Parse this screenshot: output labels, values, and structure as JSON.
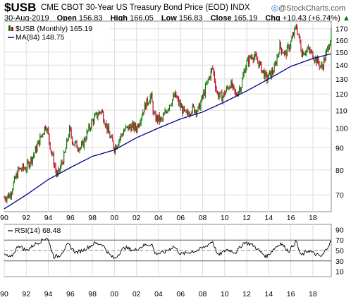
{
  "header": {
    "symbol": "$USB",
    "description": "CME CBOT 30-Year US Treasury Bond Price (EOD)  INDX",
    "brand": "@StockCharts.com",
    "date": "30-Aug-2019",
    "open_label": "Open",
    "open": "156.83",
    "high_label": "High",
    "high": "166.05",
    "low_label": "Low",
    "low": "156.83",
    "close_label": "Close",
    "close": "165.19",
    "chg_label": "Chg",
    "chg": "+10.43 (+6.74%)",
    "chg_arrow": "▲"
  },
  "chart_data": [
    {
      "type": "candlestick",
      "title": "$USB CME CBOT 30-Year US Treasury Bond Price (EOD) INDX",
      "period": "Monthly",
      "x_range": [
        1990,
        2019.67
      ],
      "ylim": [
        64,
        177
      ],
      "y_scale": "log",
      "y_ticks": [
        70,
        80,
        90,
        100,
        110,
        120,
        130,
        140,
        150,
        160,
        170
      ],
      "x_tick_labels": [
        "90",
        "92",
        "94",
        "96",
        "98",
        "00",
        "02",
        "04",
        "06",
        "08",
        "10",
        "12",
        "14",
        "16",
        "18"
      ],
      "grid": true,
      "legend": [
        {
          "name": "$USB (Monthly) 165.19",
          "marker": "candle"
        },
        {
          "name": "MA(84) 148.75",
          "color": "#00008b"
        }
      ],
      "colors": {
        "up": "#007a00",
        "down": "#c0001a",
        "ma": "#00008b"
      },
      "price_path": [
        {
          "x": 1990.0,
          "y": 69
        },
        {
          "x": 1990.5,
          "y": 70
        },
        {
          "x": 1991.3,
          "y": 80
        },
        {
          "x": 1992.0,
          "y": 81
        },
        {
          "x": 1992.7,
          "y": 87
        },
        {
          "x": 1993.0,
          "y": 91
        },
        {
          "x": 1993.8,
          "y": 102
        },
        {
          "x": 1994.2,
          "y": 90
        },
        {
          "x": 1994.8,
          "y": 77
        },
        {
          "x": 1995.5,
          "y": 87
        },
        {
          "x": 1995.9,
          "y": 99
        },
        {
          "x": 1996.3,
          "y": 92
        },
        {
          "x": 1997.0,
          "y": 90
        },
        {
          "x": 1997.5,
          "y": 97
        },
        {
          "x": 1998.0,
          "y": 104
        },
        {
          "x": 1998.8,
          "y": 110
        },
        {
          "x": 1999.5,
          "y": 97
        },
        {
          "x": 2000.0,
          "y": 90
        },
        {
          "x": 2000.9,
          "y": 99
        },
        {
          "x": 2001.5,
          "y": 101
        },
        {
          "x": 2002.0,
          "y": 100
        },
        {
          "x": 2002.8,
          "y": 113
        },
        {
          "x": 2003.3,
          "y": 119
        },
        {
          "x": 2003.6,
          "y": 106
        },
        {
          "x": 2004.3,
          "y": 104
        },
        {
          "x": 2005.0,
          "y": 114
        },
        {
          "x": 2005.5,
          "y": 119
        },
        {
          "x": 2006.0,
          "y": 112
        },
        {
          "x": 2006.5,
          "y": 107
        },
        {
          "x": 2007.0,
          "y": 111
        },
        {
          "x": 2007.6,
          "y": 110
        },
        {
          "x": 2008.0,
          "y": 118
        },
        {
          "x": 2008.9,
          "y": 138
        },
        {
          "x": 2009.3,
          "y": 120
        },
        {
          "x": 2009.8,
          "y": 118
        },
        {
          "x": 2010.5,
          "y": 127
        },
        {
          "x": 2011.0,
          "y": 119
        },
        {
          "x": 2011.5,
          "y": 126
        },
        {
          "x": 2011.9,
          "y": 140
        },
        {
          "x": 2012.5,
          "y": 148
        },
        {
          "x": 2013.0,
          "y": 143
        },
        {
          "x": 2013.8,
          "y": 130
        },
        {
          "x": 2014.5,
          "y": 137
        },
        {
          "x": 2015.0,
          "y": 155
        },
        {
          "x": 2015.5,
          "y": 148
        },
        {
          "x": 2016.0,
          "y": 158
        },
        {
          "x": 2016.5,
          "y": 172
        },
        {
          "x": 2017.0,
          "y": 150
        },
        {
          "x": 2017.5,
          "y": 152
        },
        {
          "x": 2018.0,
          "y": 148
        },
        {
          "x": 2018.8,
          "y": 138
        },
        {
          "x": 2019.2,
          "y": 148
        },
        {
          "x": 2019.67,
          "y": 165
        }
      ],
      "ma_path": [
        {
          "x": 1990.0,
          "y": 65
        },
        {
          "x": 1992.0,
          "y": 70
        },
        {
          "x": 1994.0,
          "y": 76
        },
        {
          "x": 1996.0,
          "y": 81
        },
        {
          "x": 1998.0,
          "y": 86
        },
        {
          "x": 2000.0,
          "y": 89
        },
        {
          "x": 2002.0,
          "y": 95
        },
        {
          "x": 2004.0,
          "y": 100
        },
        {
          "x": 2006.0,
          "y": 105
        },
        {
          "x": 2008.0,
          "y": 109
        },
        {
          "x": 2010.0,
          "y": 115
        },
        {
          "x": 2012.0,
          "y": 122
        },
        {
          "x": 2014.0,
          "y": 130
        },
        {
          "x": 2016.0,
          "y": 139
        },
        {
          "x": 2018.0,
          "y": 145
        },
        {
          "x": 2019.67,
          "y": 148.75
        }
      ]
    },
    {
      "type": "line",
      "title": "RSI(14) 68.48",
      "ylim": [
        0,
        100
      ],
      "y_ticks": [
        10,
        30,
        50,
        70,
        90
      ],
      "reference_lines": [
        30,
        70
      ],
      "center_line": 50,
      "x_tick_labels": [
        "90",
        "92",
        "94",
        "96",
        "98",
        "00",
        "02",
        "04",
        "06",
        "08",
        "10",
        "12",
        "14",
        "16",
        "18"
      ],
      "legend": [
        {
          "name": "RSI(14) 68.48",
          "color": "#000000"
        }
      ],
      "series_path": [
        {
          "x": 1990.0,
          "y": 42
        },
        {
          "x": 1990.6,
          "y": 36
        },
        {
          "x": 1991.3,
          "y": 60
        },
        {
          "x": 1992.0,
          "y": 50
        },
        {
          "x": 1992.8,
          "y": 62
        },
        {
          "x": 1993.5,
          "y": 70
        },
        {
          "x": 1993.9,
          "y": 75
        },
        {
          "x": 1994.5,
          "y": 38
        },
        {
          "x": 1995.0,
          "y": 40
        },
        {
          "x": 1995.8,
          "y": 62
        },
        {
          "x": 1996.5,
          "y": 46
        },
        {
          "x": 1997.3,
          "y": 52
        },
        {
          "x": 1998.2,
          "y": 64
        },
        {
          "x": 1998.9,
          "y": 62
        },
        {
          "x": 1999.5,
          "y": 43
        },
        {
          "x": 2000.0,
          "y": 34
        },
        {
          "x": 2000.9,
          "y": 56
        },
        {
          "x": 2001.8,
          "y": 50
        },
        {
          "x": 2002.7,
          "y": 60
        },
        {
          "x": 2003.4,
          "y": 62
        },
        {
          "x": 2003.7,
          "y": 44
        },
        {
          "x": 2004.5,
          "y": 46
        },
        {
          "x": 2005.4,
          "y": 58
        },
        {
          "x": 2006.0,
          "y": 43
        },
        {
          "x": 2006.7,
          "y": 46
        },
        {
          "x": 2007.5,
          "y": 50
        },
        {
          "x": 2008.3,
          "y": 58
        },
        {
          "x": 2008.9,
          "y": 68
        },
        {
          "x": 2009.4,
          "y": 40
        },
        {
          "x": 2010.2,
          "y": 52
        },
        {
          "x": 2011.0,
          "y": 46
        },
        {
          "x": 2011.8,
          "y": 66
        },
        {
          "x": 2012.6,
          "y": 60
        },
        {
          "x": 2013.2,
          "y": 48
        },
        {
          "x": 2013.8,
          "y": 38
        },
        {
          "x": 2014.6,
          "y": 56
        },
        {
          "x": 2015.1,
          "y": 64
        },
        {
          "x": 2015.8,
          "y": 48
        },
        {
          "x": 2016.5,
          "y": 68
        },
        {
          "x": 2016.9,
          "y": 40
        },
        {
          "x": 2017.6,
          "y": 50
        },
        {
          "x": 2018.2,
          "y": 43
        },
        {
          "x": 2018.8,
          "y": 38
        },
        {
          "x": 2019.2,
          "y": 52
        },
        {
          "x": 2019.67,
          "y": 68.48
        }
      ]
    }
  ]
}
